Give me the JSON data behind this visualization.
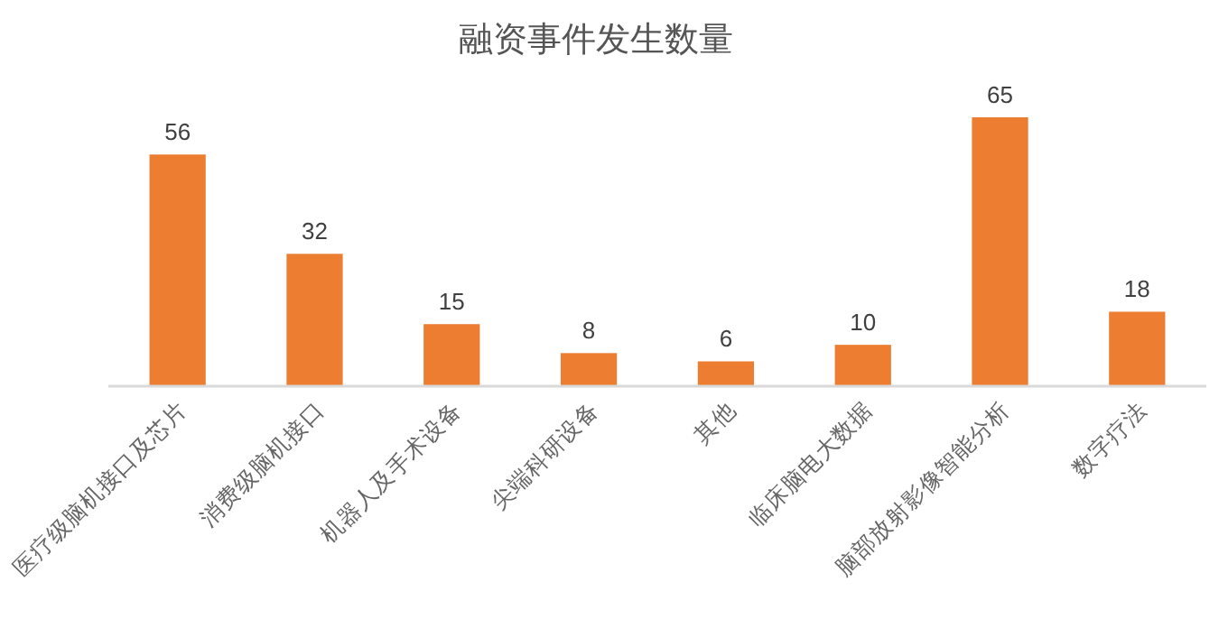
{
  "chart_data": {
    "type": "bar",
    "title": "融资事件发生数量",
    "categories": [
      "医疗级脑机接口及芯片",
      "消费级脑机接口",
      "机器人及手术设备",
      "尖端科研设备",
      "其他",
      "临床脑电大数据",
      "脑部放射影像智能分析",
      "数字疗法"
    ],
    "values": [
      56,
      32,
      15,
      8,
      6,
      10,
      65,
      18
    ],
    "color": "#ed7d31",
    "data_labels": true
  }
}
